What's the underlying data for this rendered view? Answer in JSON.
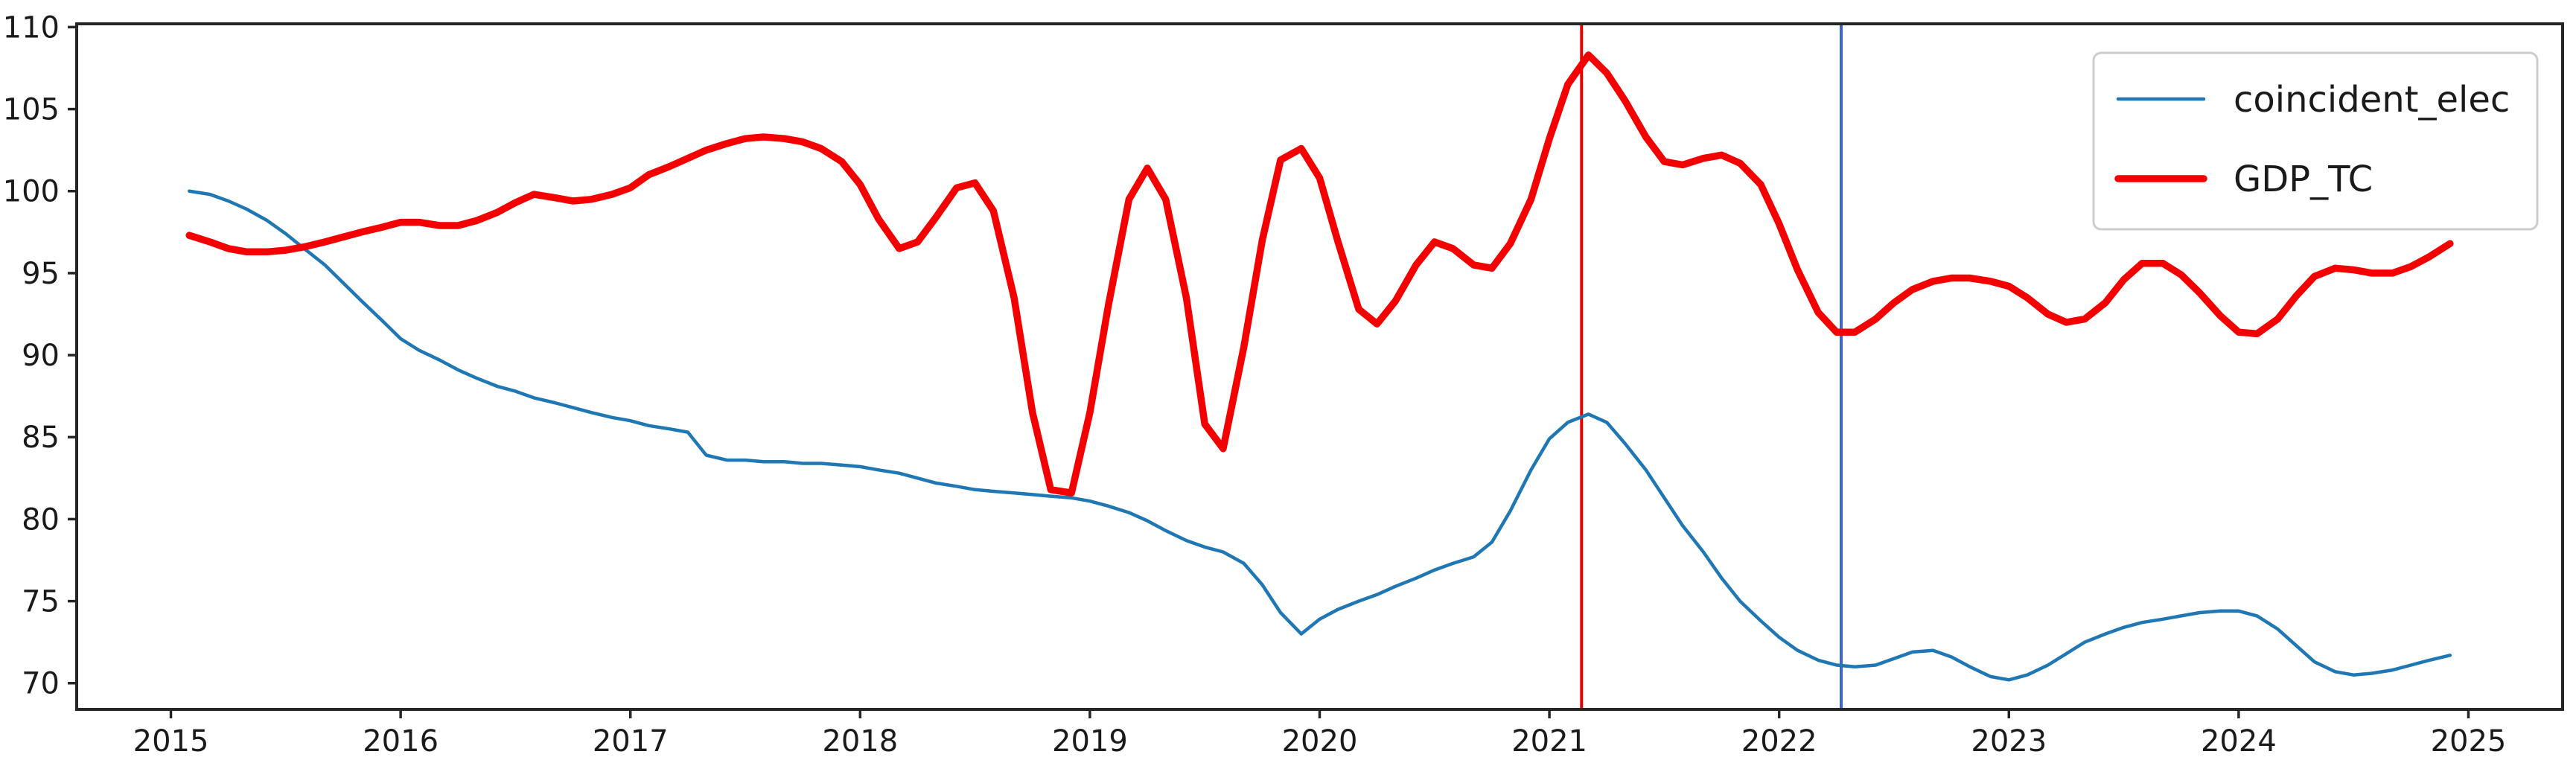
{
  "figure": {
    "background": "#ffffff",
    "title": ""
  },
  "chart_data": {
    "type": "line",
    "title": "",
    "xlabel": "",
    "ylabel": "",
    "grid": false,
    "xlim": [
      2014.59,
      2025.41
    ],
    "ylim": [
      68.4,
      110.2
    ],
    "x_ticks": [
      2015,
      2016,
      2017,
      2018,
      2019,
      2020,
      2021,
      2022,
      2023,
      2024,
      2025
    ],
    "y_ticks": [
      70,
      75,
      80,
      85,
      90,
      95,
      100,
      105,
      110
    ],
    "axis_color": "#262626",
    "tick_label_color": "#1a1a1a",
    "tick_font_size": 40,
    "legend": {
      "position": "upper right",
      "font_size": 48,
      "border_color": "#cccccc",
      "background": "#ffffff"
    },
    "series": [
      {
        "name": "coincident_elec",
        "color": "#1f77b4",
        "line_width": 4.5,
        "points": [
          [
            2015.08,
            100.0
          ],
          [
            2015.17,
            99.8
          ],
          [
            2015.25,
            99.4
          ],
          [
            2015.33,
            98.9
          ],
          [
            2015.42,
            98.2
          ],
          [
            2015.5,
            97.4
          ],
          [
            2015.58,
            96.5
          ],
          [
            2015.67,
            95.5
          ],
          [
            2015.75,
            94.4
          ],
          [
            2015.83,
            93.3
          ],
          [
            2015.92,
            92.1
          ],
          [
            2016.0,
            91.0
          ],
          [
            2016.08,
            90.3
          ],
          [
            2016.17,
            89.7
          ],
          [
            2016.25,
            89.1
          ],
          [
            2016.33,
            88.6
          ],
          [
            2016.42,
            88.1
          ],
          [
            2016.5,
            87.8
          ],
          [
            2016.58,
            87.4
          ],
          [
            2016.67,
            87.1
          ],
          [
            2016.75,
            86.8
          ],
          [
            2016.83,
            86.5
          ],
          [
            2016.92,
            86.2
          ],
          [
            2017.0,
            86.0
          ],
          [
            2017.08,
            85.7
          ],
          [
            2017.17,
            85.5
          ],
          [
            2017.25,
            85.3
          ],
          [
            2017.33,
            83.9
          ],
          [
            2017.42,
            83.6
          ],
          [
            2017.5,
            83.6
          ],
          [
            2017.58,
            83.5
          ],
          [
            2017.67,
            83.5
          ],
          [
            2017.75,
            83.4
          ],
          [
            2017.83,
            83.4
          ],
          [
            2017.92,
            83.3
          ],
          [
            2018.0,
            83.2
          ],
          [
            2018.08,
            83.0
          ],
          [
            2018.17,
            82.8
          ],
          [
            2018.25,
            82.5
          ],
          [
            2018.33,
            82.2
          ],
          [
            2018.42,
            82.0
          ],
          [
            2018.5,
            81.8
          ],
          [
            2018.58,
            81.7
          ],
          [
            2018.67,
            81.6
          ],
          [
            2018.75,
            81.5
          ],
          [
            2018.83,
            81.4
          ],
          [
            2018.92,
            81.3
          ],
          [
            2019.0,
            81.1
          ],
          [
            2019.08,
            80.8
          ],
          [
            2019.17,
            80.4
          ],
          [
            2019.25,
            79.9
          ],
          [
            2019.33,
            79.3
          ],
          [
            2019.42,
            78.7
          ],
          [
            2019.5,
            78.3
          ],
          [
            2019.58,
            78.0
          ],
          [
            2019.67,
            77.3
          ],
          [
            2019.75,
            76.0
          ],
          [
            2019.83,
            74.3
          ],
          [
            2019.92,
            73.0
          ],
          [
            2020.0,
            73.9
          ],
          [
            2020.08,
            74.5
          ],
          [
            2020.17,
            75.0
          ],
          [
            2020.25,
            75.4
          ],
          [
            2020.33,
            75.9
          ],
          [
            2020.42,
            76.4
          ],
          [
            2020.5,
            76.9
          ],
          [
            2020.58,
            77.3
          ],
          [
            2020.67,
            77.7
          ],
          [
            2020.75,
            78.6
          ],
          [
            2020.83,
            80.5
          ],
          [
            2020.92,
            83.0
          ],
          [
            2021.0,
            84.9
          ],
          [
            2021.08,
            85.9
          ],
          [
            2021.17,
            86.4
          ],
          [
            2021.25,
            85.9
          ],
          [
            2021.33,
            84.6
          ],
          [
            2021.42,
            83.0
          ],
          [
            2021.5,
            81.3
          ],
          [
            2021.58,
            79.6
          ],
          [
            2021.67,
            78.0
          ],
          [
            2021.75,
            76.4
          ],
          [
            2021.83,
            75.0
          ],
          [
            2021.92,
            73.8
          ],
          [
            2022.0,
            72.8
          ],
          [
            2022.08,
            72.0
          ],
          [
            2022.17,
            71.4
          ],
          [
            2022.25,
            71.1
          ],
          [
            2022.33,
            71.0
          ],
          [
            2022.42,
            71.1
          ],
          [
            2022.5,
            71.5
          ],
          [
            2022.58,
            71.9
          ],
          [
            2022.67,
            72.0
          ],
          [
            2022.75,
            71.6
          ],
          [
            2022.83,
            71.0
          ],
          [
            2022.92,
            70.4
          ],
          [
            2023.0,
            70.2
          ],
          [
            2023.08,
            70.5
          ],
          [
            2023.17,
            71.1
          ],
          [
            2023.25,
            71.8
          ],
          [
            2023.33,
            72.5
          ],
          [
            2023.42,
            73.0
          ],
          [
            2023.5,
            73.4
          ],
          [
            2023.58,
            73.7
          ],
          [
            2023.67,
            73.9
          ],
          [
            2023.75,
            74.1
          ],
          [
            2023.83,
            74.3
          ],
          [
            2023.92,
            74.4
          ],
          [
            2024.0,
            74.4
          ],
          [
            2024.08,
            74.1
          ],
          [
            2024.17,
            73.3
          ],
          [
            2024.25,
            72.3
          ],
          [
            2024.33,
            71.3
          ],
          [
            2024.42,
            70.7
          ],
          [
            2024.5,
            70.5
          ],
          [
            2024.58,
            70.6
          ],
          [
            2024.67,
            70.8
          ],
          [
            2024.75,
            71.1
          ],
          [
            2024.83,
            71.4
          ],
          [
            2024.92,
            71.7
          ]
        ]
      },
      {
        "name": "GDP_TC",
        "color": "#f40000",
        "line_width": 9.5,
        "points": [
          [
            2015.08,
            97.3
          ],
          [
            2015.17,
            96.9
          ],
          [
            2015.25,
            96.5
          ],
          [
            2015.33,
            96.3
          ],
          [
            2015.42,
            96.3
          ],
          [
            2015.5,
            96.4
          ],
          [
            2015.58,
            96.6
          ],
          [
            2015.67,
            96.9
          ],
          [
            2015.75,
            97.2
          ],
          [
            2015.83,
            97.5
          ],
          [
            2015.92,
            97.8
          ],
          [
            2016.0,
            98.1
          ],
          [
            2016.08,
            98.1
          ],
          [
            2016.17,
            97.9
          ],
          [
            2016.25,
            97.9
          ],
          [
            2016.33,
            98.2
          ],
          [
            2016.42,
            98.7
          ],
          [
            2016.5,
            99.3
          ],
          [
            2016.58,
            99.8
          ],
          [
            2016.67,
            99.6
          ],
          [
            2016.75,
            99.4
          ],
          [
            2016.83,
            99.5
          ],
          [
            2016.92,
            99.8
          ],
          [
            2017.0,
            100.2
          ],
          [
            2017.08,
            101.0
          ],
          [
            2017.17,
            101.5
          ],
          [
            2017.25,
            102.0
          ],
          [
            2017.33,
            102.5
          ],
          [
            2017.42,
            102.9
          ],
          [
            2017.5,
            103.2
          ],
          [
            2017.58,
            103.3
          ],
          [
            2017.67,
            103.2
          ],
          [
            2017.75,
            103.0
          ],
          [
            2017.83,
            102.6
          ],
          [
            2017.92,
            101.8
          ],
          [
            2018.0,
            100.4
          ],
          [
            2018.08,
            98.3
          ],
          [
            2018.17,
            96.5
          ],
          [
            2018.25,
            96.9
          ],
          [
            2018.33,
            98.4
          ],
          [
            2018.42,
            100.2
          ],
          [
            2018.5,
            100.5
          ],
          [
            2018.58,
            98.8
          ],
          [
            2018.67,
            93.5
          ],
          [
            2018.75,
            86.5
          ],
          [
            2018.83,
            81.8
          ],
          [
            2018.92,
            81.6
          ],
          [
            2019.0,
            86.5
          ],
          [
            2019.08,
            93.0
          ],
          [
            2019.17,
            99.5
          ],
          [
            2019.25,
            101.4
          ],
          [
            2019.33,
            99.5
          ],
          [
            2019.42,
            93.5
          ],
          [
            2019.5,
            85.8
          ],
          [
            2019.58,
            84.3
          ],
          [
            2019.67,
            90.5
          ],
          [
            2019.75,
            97.0
          ],
          [
            2019.83,
            101.9
          ],
          [
            2019.92,
            102.6
          ],
          [
            2020.0,
            100.8
          ],
          [
            2020.08,
            96.9
          ],
          [
            2020.17,
            92.8
          ],
          [
            2020.25,
            91.9
          ],
          [
            2020.33,
            93.3
          ],
          [
            2020.42,
            95.5
          ],
          [
            2020.5,
            96.9
          ],
          [
            2020.58,
            96.5
          ],
          [
            2020.67,
            95.5
          ],
          [
            2020.75,
            95.3
          ],
          [
            2020.83,
            96.8
          ],
          [
            2020.92,
            99.5
          ],
          [
            2021.0,
            103.2
          ],
          [
            2021.08,
            106.5
          ],
          [
            2021.17,
            108.3
          ],
          [
            2021.25,
            107.2
          ],
          [
            2021.33,
            105.5
          ],
          [
            2021.42,
            103.3
          ],
          [
            2021.5,
            101.8
          ],
          [
            2021.58,
            101.6
          ],
          [
            2021.67,
            102.0
          ],
          [
            2021.75,
            102.2
          ],
          [
            2021.83,
            101.7
          ],
          [
            2021.92,
            100.4
          ],
          [
            2022.0,
            98.0
          ],
          [
            2022.08,
            95.2
          ],
          [
            2022.17,
            92.6
          ],
          [
            2022.25,
            91.4
          ],
          [
            2022.33,
            91.4
          ],
          [
            2022.42,
            92.2
          ],
          [
            2022.5,
            93.2
          ],
          [
            2022.58,
            94.0
          ],
          [
            2022.67,
            94.5
          ],
          [
            2022.75,
            94.7
          ],
          [
            2022.83,
            94.7
          ],
          [
            2022.92,
            94.5
          ],
          [
            2023.0,
            94.2
          ],
          [
            2023.08,
            93.5
          ],
          [
            2023.17,
            92.5
          ],
          [
            2023.25,
            92.0
          ],
          [
            2023.33,
            92.2
          ],
          [
            2023.42,
            93.2
          ],
          [
            2023.5,
            94.6
          ],
          [
            2023.58,
            95.6
          ],
          [
            2023.67,
            95.6
          ],
          [
            2023.75,
            94.9
          ],
          [
            2023.83,
            93.8
          ],
          [
            2023.92,
            92.4
          ],
          [
            2024.0,
            91.4
          ],
          [
            2024.08,
            91.3
          ],
          [
            2024.17,
            92.2
          ],
          [
            2024.25,
            93.6
          ],
          [
            2024.33,
            94.8
          ],
          [
            2024.42,
            95.3
          ],
          [
            2024.5,
            95.2
          ],
          [
            2024.58,
            95.0
          ],
          [
            2024.67,
            95.0
          ],
          [
            2024.75,
            95.4
          ],
          [
            2024.83,
            96.0
          ],
          [
            2024.92,
            96.8
          ]
        ]
      }
    ],
    "vlines": [
      {
        "x": 2021.14,
        "color": "#e50000",
        "width": 4,
        "name": "red-event-line"
      },
      {
        "x": 2022.27,
        "color": "#3b64d8",
        "width": 4,
        "name": "blue-event-line"
      }
    ]
  }
}
